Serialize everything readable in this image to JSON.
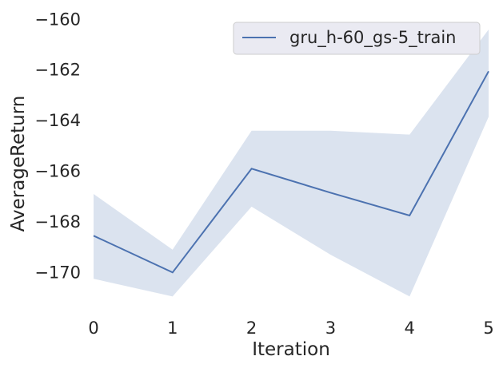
{
  "chart_data": {
    "type": "line",
    "title": "",
    "xlabel": "Iteration",
    "ylabel": "AverageReturn",
    "x": [
      0,
      1,
      2,
      3,
      4,
      5
    ],
    "series": [
      {
        "name": "gru_h-60_gs-5_train",
        "values": [
          -168.55,
          -170.0,
          -165.9,
          -166.85,
          -167.75,
          -162.05
        ],
        "band_upper": [
          -166.9,
          -169.1,
          -164.4,
          -164.4,
          -164.55,
          -160.4
        ],
        "band_lower": [
          -170.25,
          -170.95,
          -167.4,
          -169.3,
          -170.95,
          -163.85
        ],
        "color": "#4c72b0",
        "band_color": "#dbe3ef"
      }
    ],
    "xlim": [
      0,
      5
    ],
    "ylim": [
      -171.6,
      -159.8
    ],
    "xticks": [
      0,
      1,
      2,
      3,
      4,
      5
    ],
    "xtick_labels": [
      "0",
      "1",
      "2",
      "3",
      "4",
      "5"
    ],
    "yticks": [
      -160,
      -162,
      -164,
      -166,
      -168,
      -170
    ],
    "ytick_labels": [
      "−160",
      "−162",
      "−164",
      "−166",
      "−168",
      "−170"
    ],
    "grid": false,
    "legend": "top-right"
  },
  "colors": {
    "legend_bg": "#eaeaf2",
    "legend_border": "#cccccc"
  }
}
